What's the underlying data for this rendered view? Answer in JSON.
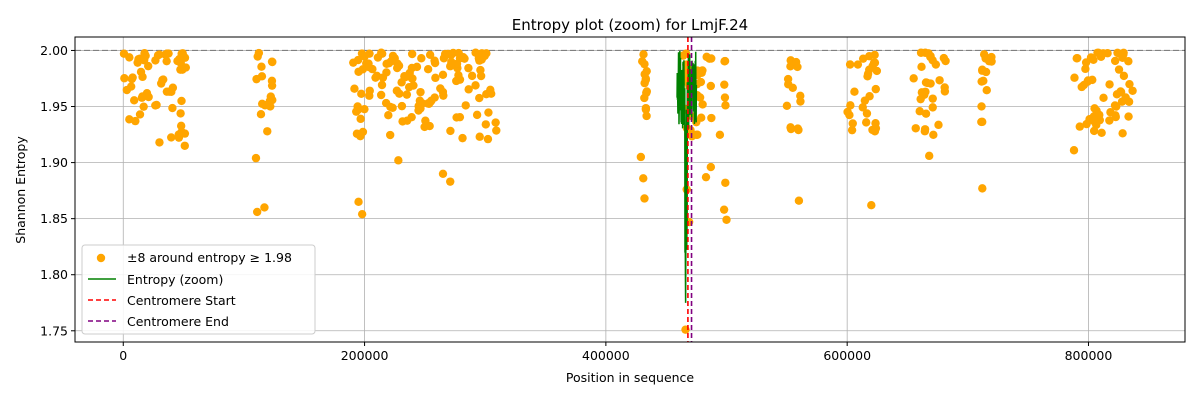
{
  "chart_data": {
    "type": "scatter",
    "title": "Entropy plot (zoom) for LmjF.24",
    "xlabel": "Position in sequence",
    "ylabel": "Shannon Entropy",
    "xlim": [
      -40000,
      880000
    ],
    "ylim": [
      1.74,
      2.012
    ],
    "x_ticks": [
      0,
      200000,
      400000,
      600000,
      800000
    ],
    "x_tick_labels": [
      "0",
      "200000",
      "400000",
      "600000",
      "800000"
    ],
    "y_ticks": [
      1.75,
      1.8,
      1.85,
      1.9,
      1.95,
      2.0
    ],
    "y_tick_labels": [
      "1.75",
      "1.80",
      "1.85",
      "1.90",
      "1.95",
      "2.00"
    ],
    "grid": true,
    "legend_position": "lower-left",
    "reference_line": {
      "y": 2.0,
      "color": "#808080",
      "style": "dashed"
    },
    "series": [
      {
        "name": "±8 around entropy ≥ 1.98",
        "kind": "scatter",
        "color": "#FFA500",
        "clusters": [
          {
            "x_range": [
              0,
              52000
            ],
            "y_range": [
              1.915,
              2.0
            ]
          },
          {
            "x_range": [
              110000,
              125000
            ],
            "y_range": [
              1.855,
              1.995
            ]
          },
          {
            "x_range": [
              190000,
              310000
            ],
            "y_range": [
              1.853,
              2.0
            ]
          },
          {
            "x_range": [
              428000,
              434000
            ],
            "y_range": [
              1.868,
              1.995
            ]
          },
          {
            "x_range": [
              464000,
              500000
            ],
            "y_range": [
              1.75,
              2.0
            ]
          },
          {
            "x_range": [
              550000,
              562000
            ],
            "y_range": [
              1.865,
              1.987
            ]
          },
          {
            "x_range": [
              600000,
              625000
            ],
            "y_range": [
              1.862,
              1.996
            ]
          },
          {
            "x_range": [
              655000,
              682000
            ],
            "y_range": [
              1.905,
              1.99
            ]
          },
          {
            "x_range": [
              710000,
              720000
            ],
            "y_range": [
              1.877,
              1.997
            ]
          },
          {
            "x_range": [
              788000,
              838000
            ],
            "y_range": [
              1.91,
              2.0
            ]
          }
        ],
        "outliers": [
          {
            "x": 10000,
            "y": 1.937
          },
          {
            "x": 30000,
            "y": 1.918
          },
          {
            "x": 46000,
            "y": 1.925
          },
          {
            "x": 51000,
            "y": 1.915
          },
          {
            "x": 111000,
            "y": 1.856
          },
          {
            "x": 117000,
            "y": 1.86
          },
          {
            "x": 110000,
            "y": 1.904
          },
          {
            "x": 195000,
            "y": 1.865
          },
          {
            "x": 198000,
            "y": 1.854
          },
          {
            "x": 228000,
            "y": 1.902
          },
          {
            "x": 265000,
            "y": 1.89
          },
          {
            "x": 271000,
            "y": 1.883
          },
          {
            "x": 429000,
            "y": 1.905
          },
          {
            "x": 431000,
            "y": 1.886
          },
          {
            "x": 432000,
            "y": 1.868
          },
          {
            "x": 467000,
            "y": 1.876
          },
          {
            "x": 469000,
            "y": 1.847
          },
          {
            "x": 466000,
            "y": 1.751
          },
          {
            "x": 483000,
            "y": 1.887
          },
          {
            "x": 487000,
            "y": 1.896
          },
          {
            "x": 498000,
            "y": 1.858
          },
          {
            "x": 500000,
            "y": 1.849
          },
          {
            "x": 499000,
            "y": 1.882
          },
          {
            "x": 560000,
            "y": 1.866
          },
          {
            "x": 620000,
            "y": 1.862
          },
          {
            "x": 668000,
            "y": 1.906
          },
          {
            "x": 712000,
            "y": 1.877
          },
          {
            "x": 788000,
            "y": 1.911
          }
        ]
      },
      {
        "name": "Entropy (zoom)",
        "kind": "line",
        "color": "#008000",
        "x_range": [
          459000,
          475000
        ],
        "y_range": [
          1.75,
          2.0
        ]
      },
      {
        "name": "Centromere Start",
        "kind": "vline",
        "color": "#FF0000",
        "x": 468000
      },
      {
        "name": "Centromere End",
        "kind": "vline",
        "color": "#800080",
        "x": 471000
      }
    ]
  }
}
